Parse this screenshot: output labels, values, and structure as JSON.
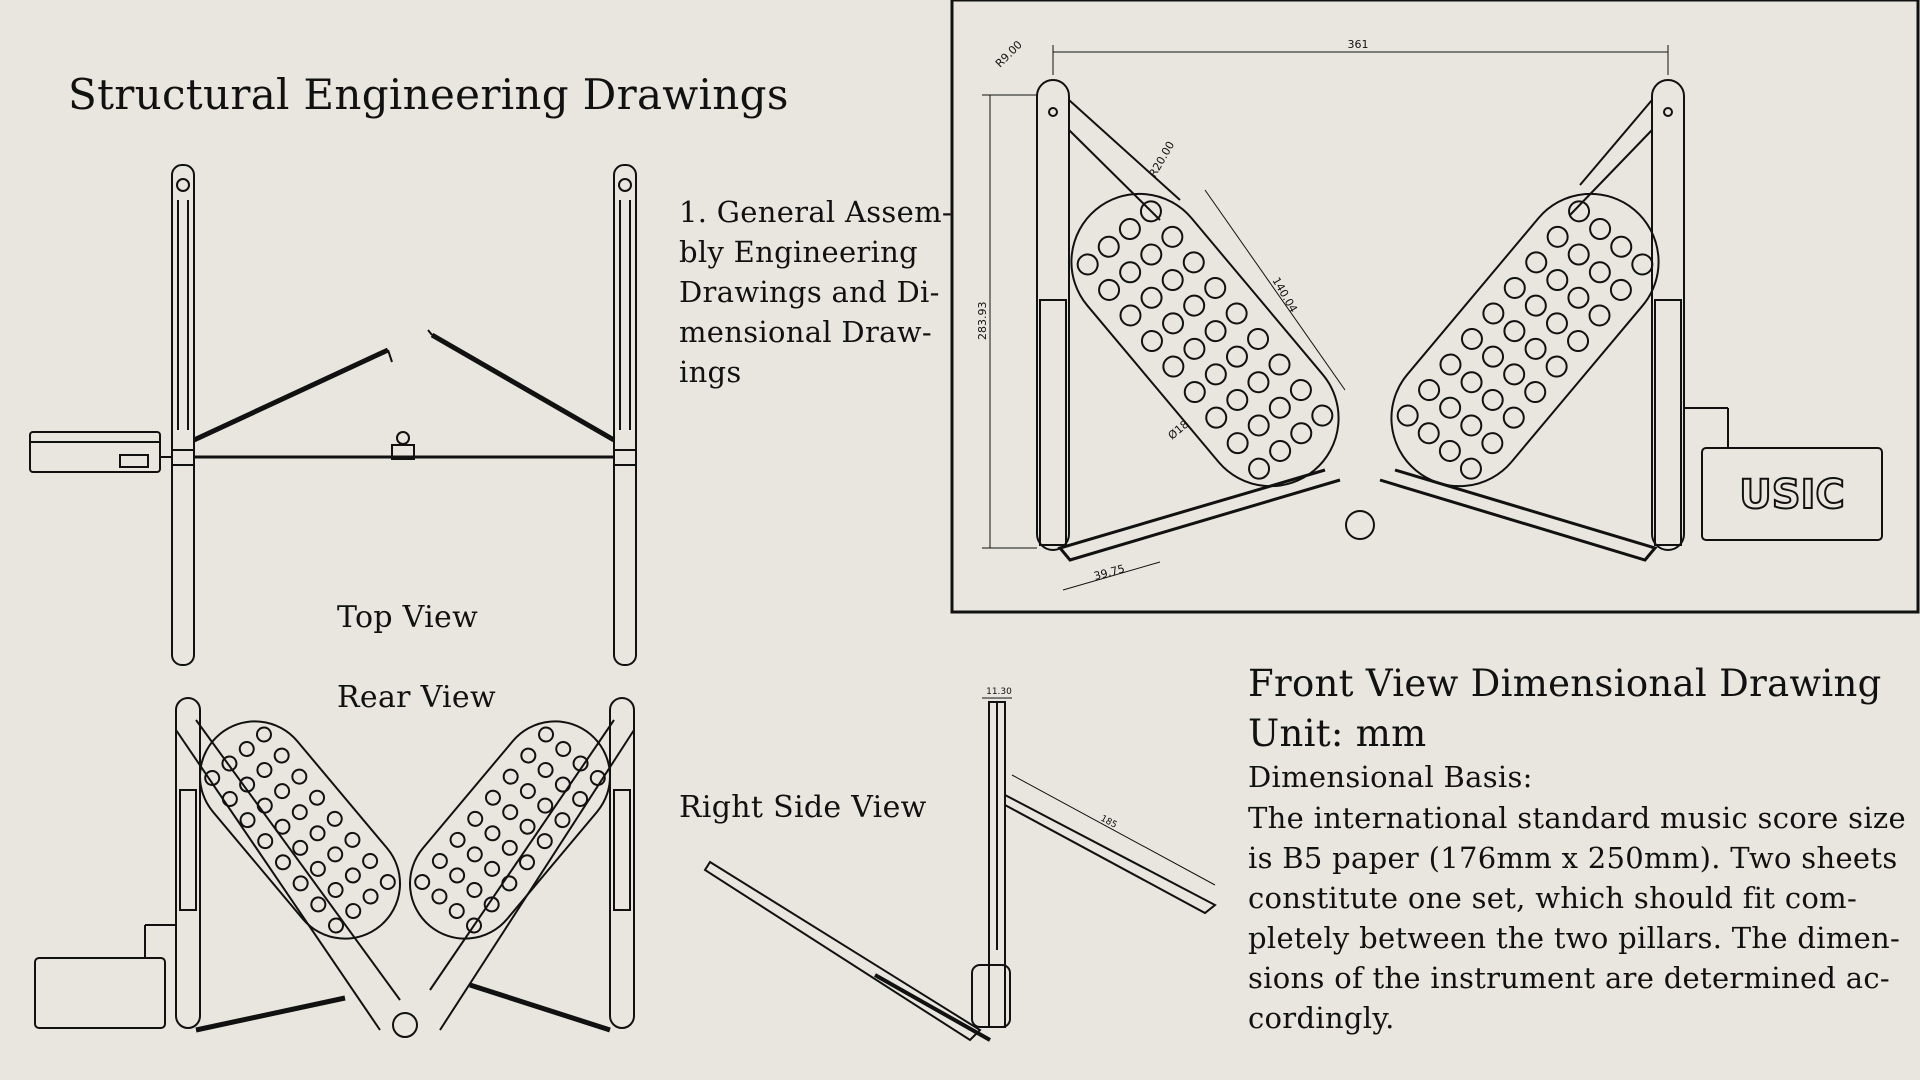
{
  "title": "Structural Engineering Drawings",
  "general_assembly": {
    "lines": [
      "1. General Assem-",
      "bly Engineering",
      "Drawings and Di-",
      "mensional Draw-",
      "ings"
    ]
  },
  "view_labels": {
    "top": "Top View",
    "rear": "Rear View",
    "right_side": "Right Side View"
  },
  "front_view": {
    "title": "Front View Dimensional Drawing",
    "unit": "Unit:  mm",
    "basis_label": "Dimensional Basis:",
    "body_lines": [
      "The international standard music score size",
      "is B5 paper (176mm x 250mm). Two sheets",
      "constitute one set, which should fit com-",
      "pletely between the two pillars. The dimen-",
      "sions of the instrument are determined ac-",
      "cordingly."
    ]
  },
  "dimensions": {
    "width": "361",
    "height": "283.93",
    "panel_length": "140.04",
    "radius_top": "R9.00",
    "radius_panel": "R20.00",
    "hole_diameter": "Ø18",
    "arm_offset": "39.75",
    "side_top": "11.30",
    "side_panel": "185"
  },
  "brand_label": "USIC",
  "colors": {
    "background": "#e8e6df",
    "ink": "#111111"
  }
}
